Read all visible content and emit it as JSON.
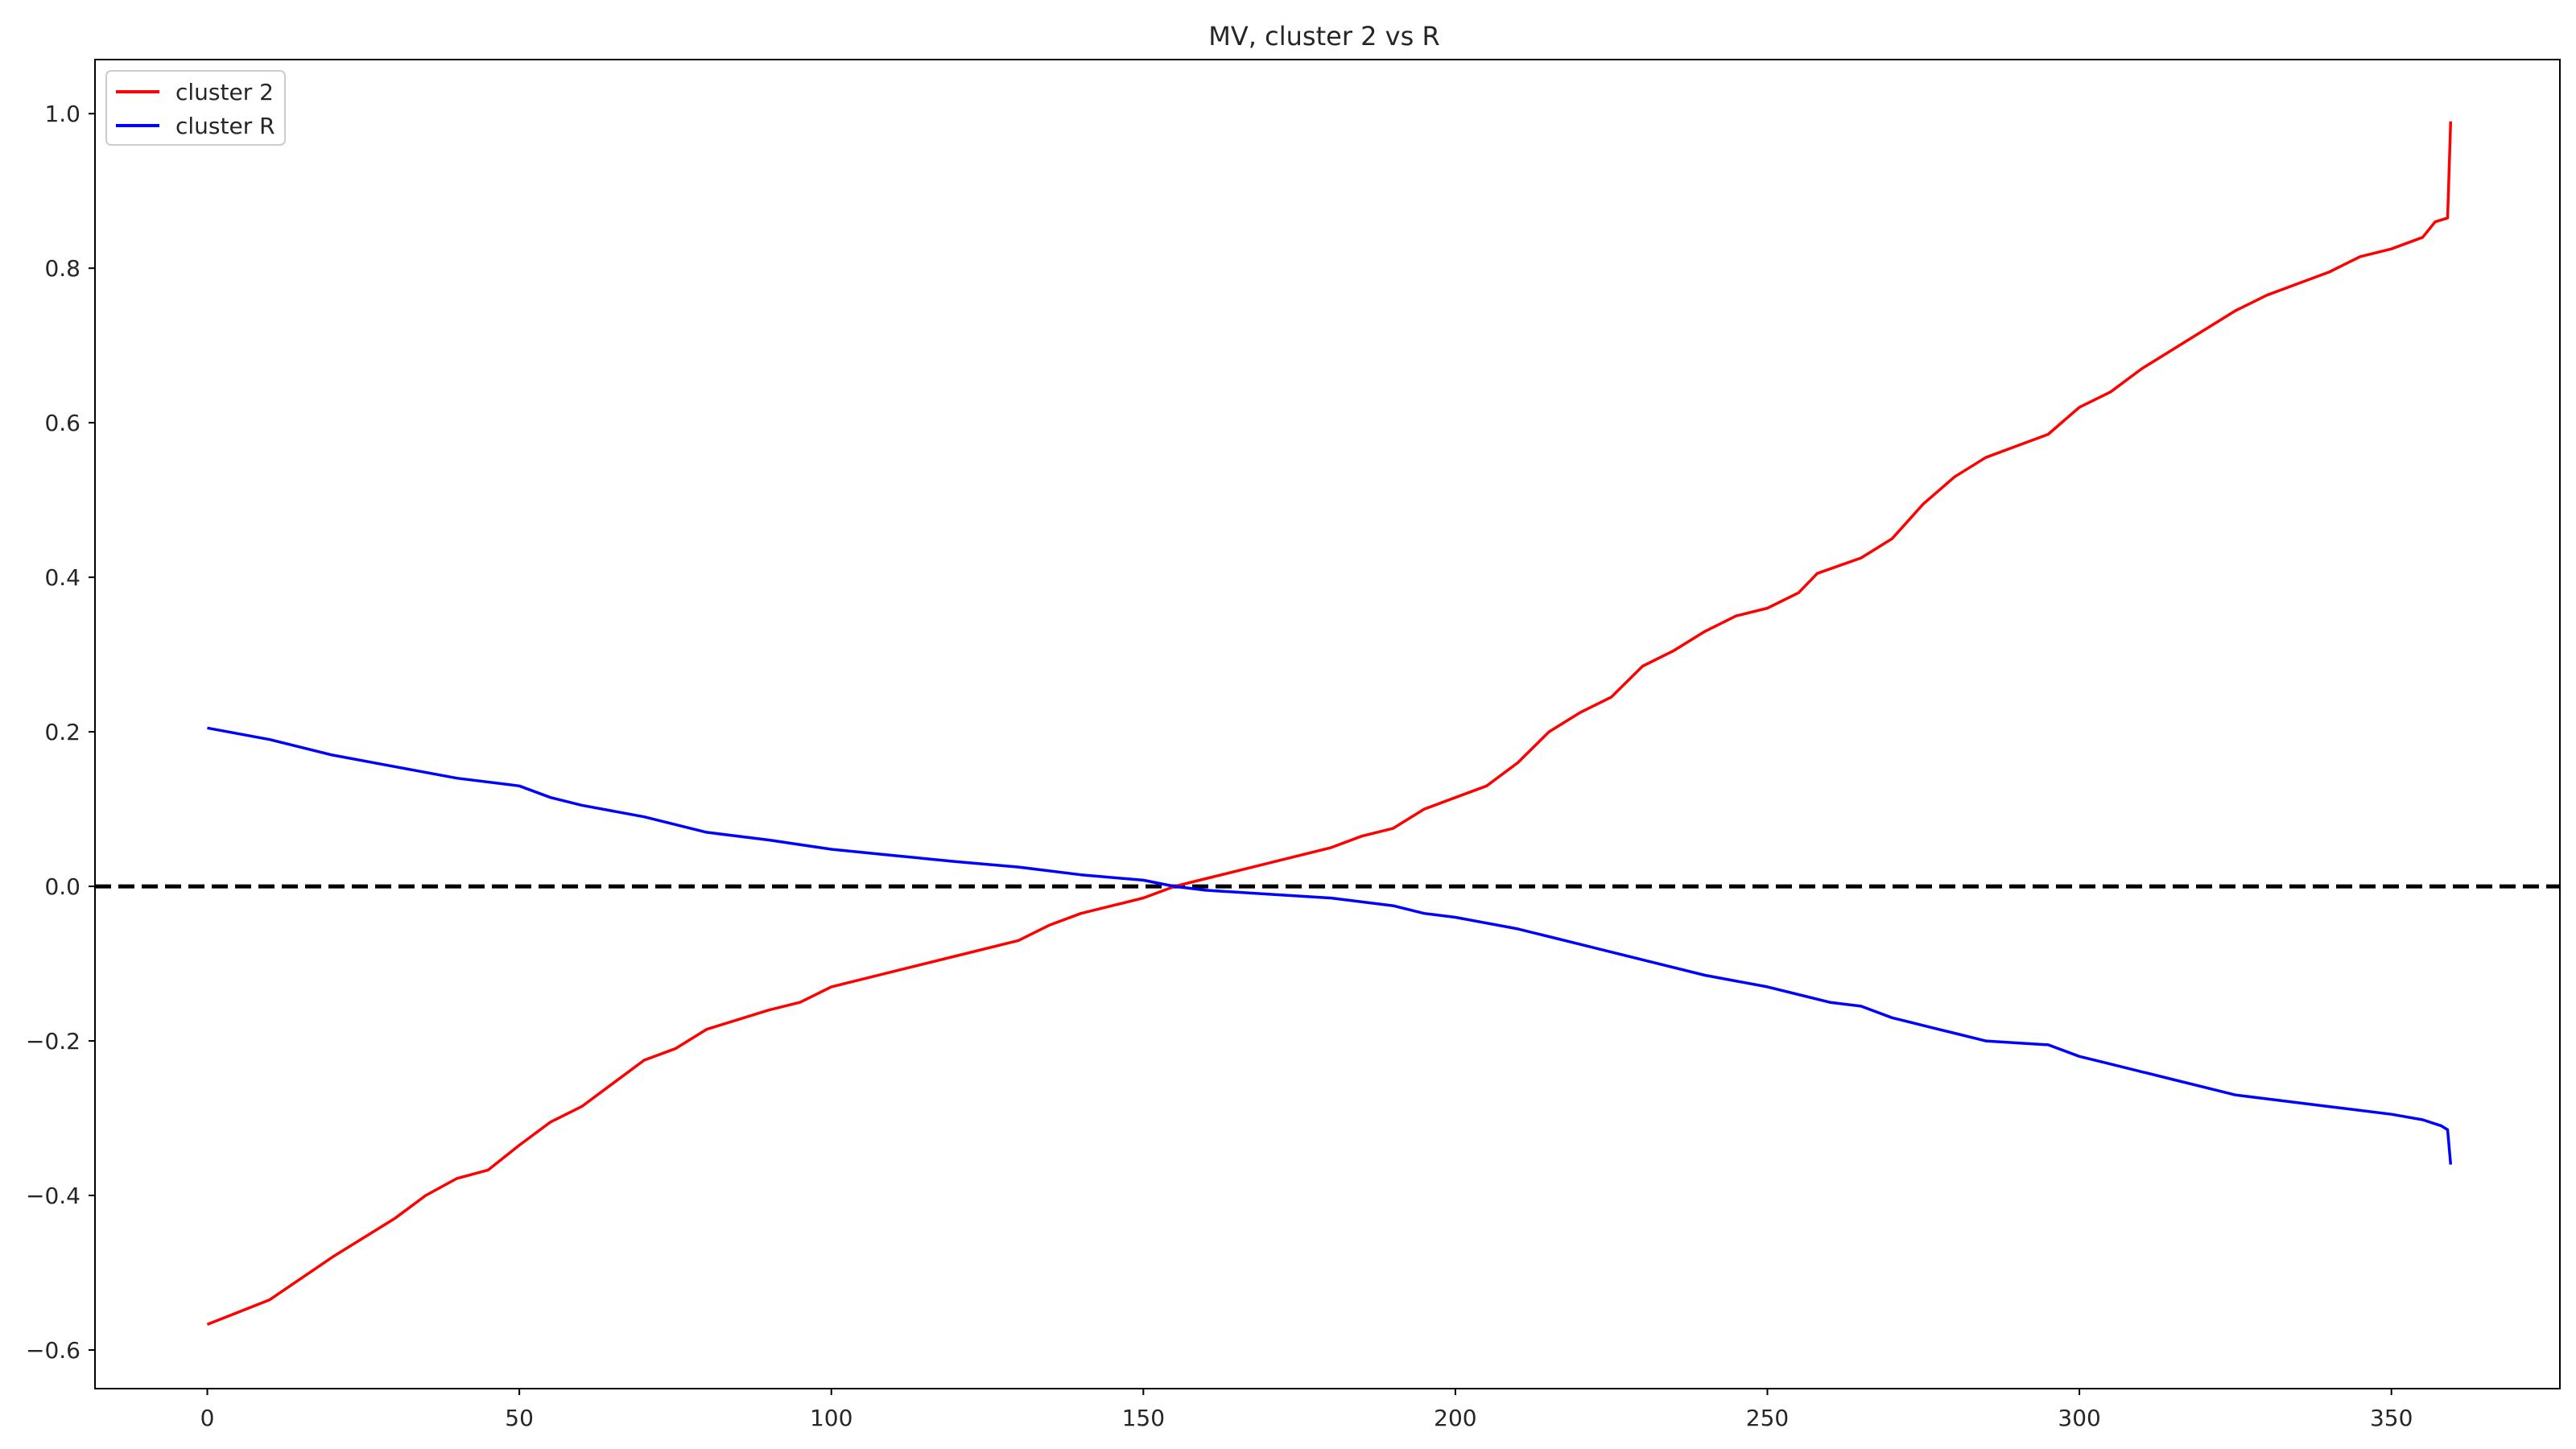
{
  "chart_data": {
    "type": "line",
    "title": "MV, cluster 2 vs R",
    "xlabel": "",
    "ylabel": "",
    "xlim": [
      -18,
      377
    ],
    "ylim": [
      -0.65,
      1.07
    ],
    "xticks": [
      0,
      50,
      100,
      150,
      200,
      250,
      300,
      350
    ],
    "yticks": [
      -0.6,
      -0.4,
      -0.2,
      0.0,
      0.2,
      0.4,
      0.6,
      0.8,
      1.0
    ],
    "ytick_labels": [
      "−0.6",
      "−0.4",
      "−0.2",
      "0.0",
      "0.2",
      "0.4",
      "0.6",
      "0.8",
      "1.0"
    ],
    "grid": false,
    "legend_position": "upper-left",
    "reference_line": {
      "y": 0.0,
      "style": "dashed",
      "color": "#000000"
    },
    "series": [
      {
        "name": "cluster 2",
        "color": "#ff0000",
        "points": [
          [
            0,
            -0.567
          ],
          [
            10,
            -0.535
          ],
          [
            20,
            -0.48
          ],
          [
            30,
            -0.43
          ],
          [
            35,
            -0.4
          ],
          [
            40,
            -0.378
          ],
          [
            45,
            -0.367
          ],
          [
            50,
            -0.335
          ],
          [
            55,
            -0.305
          ],
          [
            60,
            -0.285
          ],
          [
            65,
            -0.255
          ],
          [
            70,
            -0.225
          ],
          [
            75,
            -0.21
          ],
          [
            80,
            -0.185
          ],
          [
            90,
            -0.16
          ],
          [
            95,
            -0.15
          ],
          [
            100,
            -0.13
          ],
          [
            110,
            -0.11
          ],
          [
            120,
            -0.09
          ],
          [
            130,
            -0.07
          ],
          [
            135,
            -0.05
          ],
          [
            140,
            -0.035
          ],
          [
            145,
            -0.025
          ],
          [
            150,
            -0.015
          ],
          [
            155,
            0.0
          ],
          [
            160,
            0.01
          ],
          [
            170,
            0.03
          ],
          [
            180,
            0.05
          ],
          [
            185,
            0.065
          ],
          [
            190,
            0.075
          ],
          [
            195,
            0.1
          ],
          [
            200,
            0.115
          ],
          [
            205,
            0.13
          ],
          [
            210,
            0.16
          ],
          [
            215,
            0.2
          ],
          [
            220,
            0.225
          ],
          [
            225,
            0.245
          ],
          [
            230,
            0.285
          ],
          [
            235,
            0.305
          ],
          [
            240,
            0.33
          ],
          [
            245,
            0.35
          ],
          [
            250,
            0.36
          ],
          [
            255,
            0.38
          ],
          [
            258,
            0.405
          ],
          [
            265,
            0.425
          ],
          [
            270,
            0.45
          ],
          [
            275,
            0.495
          ],
          [
            280,
            0.53
          ],
          [
            285,
            0.555
          ],
          [
            290,
            0.57
          ],
          [
            295,
            0.585
          ],
          [
            300,
            0.62
          ],
          [
            305,
            0.64
          ],
          [
            310,
            0.67
          ],
          [
            315,
            0.695
          ],
          [
            320,
            0.72
          ],
          [
            325,
            0.745
          ],
          [
            330,
            0.765
          ],
          [
            335,
            0.78
          ],
          [
            340,
            0.795
          ],
          [
            345,
            0.815
          ],
          [
            350,
            0.825
          ],
          [
            355,
            0.84
          ],
          [
            357,
            0.86
          ],
          [
            359,
            0.865
          ],
          [
            359.5,
            0.99
          ]
        ]
      },
      {
        "name": "cluster R",
        "color": "#0000ff",
        "points": [
          [
            0,
            0.205
          ],
          [
            10,
            0.19
          ],
          [
            20,
            0.17
          ],
          [
            30,
            0.155
          ],
          [
            40,
            0.14
          ],
          [
            50,
            0.13
          ],
          [
            55,
            0.115
          ],
          [
            60,
            0.105
          ],
          [
            70,
            0.09
          ],
          [
            80,
            0.07
          ],
          [
            90,
            0.06
          ],
          [
            100,
            0.048
          ],
          [
            110,
            0.04
          ],
          [
            120,
            0.032
          ],
          [
            130,
            0.025
          ],
          [
            140,
            0.015
          ],
          [
            150,
            0.008
          ],
          [
            155,
            0.0
          ],
          [
            160,
            -0.005
          ],
          [
            170,
            -0.01
          ],
          [
            180,
            -0.015
          ],
          [
            190,
            -0.025
          ],
          [
            195,
            -0.035
          ],
          [
            200,
            -0.04
          ],
          [
            210,
            -0.055
          ],
          [
            215,
            -0.065
          ],
          [
            220,
            -0.075
          ],
          [
            225,
            -0.085
          ],
          [
            230,
            -0.095
          ],
          [
            240,
            -0.115
          ],
          [
            250,
            -0.13
          ],
          [
            255,
            -0.14
          ],
          [
            260,
            -0.15
          ],
          [
            265,
            -0.155
          ],
          [
            270,
            -0.17
          ],
          [
            275,
            -0.18
          ],
          [
            280,
            -0.19
          ],
          [
            285,
            -0.2
          ],
          [
            295,
            -0.205
          ],
          [
            300,
            -0.22
          ],
          [
            305,
            -0.23
          ],
          [
            310,
            -0.24
          ],
          [
            315,
            -0.25
          ],
          [
            320,
            -0.26
          ],
          [
            325,
            -0.27
          ],
          [
            330,
            -0.275
          ],
          [
            340,
            -0.285
          ],
          [
            345,
            -0.29
          ],
          [
            350,
            -0.295
          ],
          [
            355,
            -0.302
          ],
          [
            358,
            -0.31
          ],
          [
            359,
            -0.315
          ],
          [
            359.5,
            -0.36
          ]
        ]
      }
    ]
  }
}
